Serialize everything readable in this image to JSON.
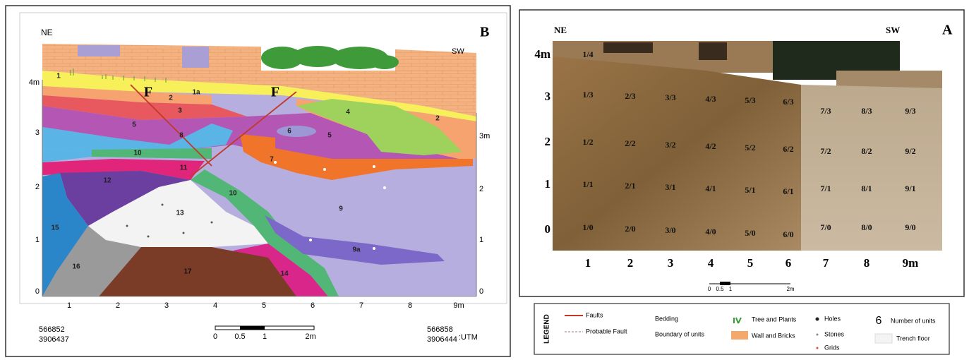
{
  "panel_b": {
    "label": "B",
    "left_direction": "NE",
    "right_direction": "SW",
    "left_axis": [
      "4m",
      "3",
      "2",
      "1",
      "0"
    ],
    "right_axis": [
      "3m",
      "2",
      "1",
      "0"
    ],
    "x_axis": [
      "1",
      "2",
      "3",
      "4",
      "5",
      "6",
      "7",
      "8",
      "9m"
    ],
    "fault_labels": [
      "F",
      "F"
    ],
    "units": [
      "1",
      "1a",
      "2",
      "3",
      "4",
      "2",
      "5",
      "8",
      "6",
      "5",
      "10",
      "7",
      "11",
      "12",
      "10",
      "9",
      "13",
      "9a",
      "15",
      "16",
      "17",
      "14"
    ],
    "scale": [
      "0",
      "0.5",
      "1",
      "2m"
    ],
    "utm_left": [
      "566852",
      "3906437"
    ],
    "utm_right": [
      "566858",
      "3906444"
    ],
    "utm_label": ":UTM"
  },
  "panel_a": {
    "label": "A",
    "left_direction": "NE",
    "right_direction": "SW",
    "top_grid": "1/4",
    "grid_rows": [
      [
        "1/3",
        "2/3",
        "3/3",
        "4/3",
        "5/3",
        "6/3",
        "7/3",
        "8/3",
        "9/3"
      ],
      [
        "1/2",
        "2/2",
        "3/2",
        "4/2",
        "5/2",
        "6/2",
        "7/2",
        "8/2",
        "9/2"
      ],
      [
        "1/1",
        "2/1",
        "3/1",
        "4/1",
        "5/1",
        "6/1",
        "7/1",
        "8/1",
        "9/1"
      ],
      [
        "1/0",
        "2/0",
        "3/0",
        "4/0",
        "5/0",
        "6/0",
        "7/0",
        "8/0",
        "9/0"
      ]
    ],
    "y_axis": [
      "4m",
      "3",
      "2",
      "1",
      "0"
    ],
    "x_axis": [
      "1",
      "2",
      "3",
      "4",
      "5",
      "6",
      "7",
      "8",
      "9m"
    ],
    "scale": [
      "0",
      "0.5",
      "1",
      "2m"
    ]
  },
  "legend": {
    "title": "LEGEND",
    "items": [
      "Faults",
      "Probable Fault",
      "Bedding",
      "Boundary of units",
      "Tree and Plants",
      "Wall and Bricks",
      "Holes",
      "Stones",
      "Grids",
      "Number of units",
      "Trench floor"
    ],
    "unit_example": "6"
  }
}
